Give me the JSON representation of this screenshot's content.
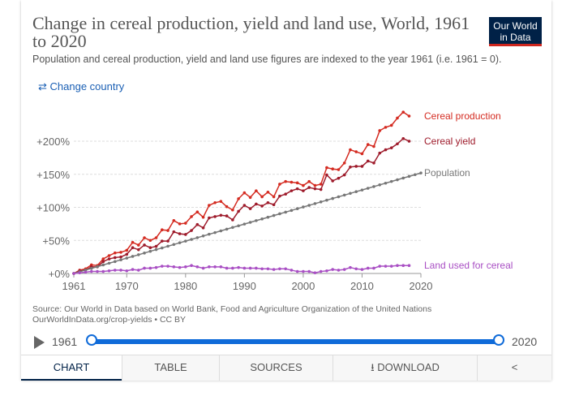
{
  "header": {
    "title": "Change in cereal production, yield and land use, World, 1961 to 2020",
    "subtitle": "Population and cereal production, yield and land use figures are indexed to the year 1961 (i.e. 1961 = 0).",
    "logo": "Our World in Data",
    "change_country": "Change country",
    "change_icon": "swap-arrows-icon"
  },
  "chart_data": {
    "type": "line",
    "title": "Change in cereal production, yield and land use, World, 1961 to 2020",
    "xlim": [
      1961,
      2020
    ],
    "ylim": [
      0,
      250
    ],
    "x_ticks": [
      "1961",
      "1970",
      "1980",
      "1990",
      "2000",
      "2010",
      "2020"
    ],
    "y_ticks": [
      "+0%",
      "+50%",
      "+100%",
      "+150%",
      "+200%"
    ],
    "grid": "horizontal dashed",
    "legend": "inline-right",
    "series": [
      {
        "name": "Cereal production",
        "color": "#d42b21",
        "start": 1961,
        "values": [
          0,
          5,
          7,
          13,
          12,
          22,
          27,
          31,
          32,
          35,
          47,
          43,
          54,
          50,
          54,
          66,
          65,
          80,
          75,
          76,
          86,
          93,
          85,
          103,
          107,
          109,
          101,
          96,
          113,
          122,
          115,
          125,
          116,
          123,
          116,
          135,
          139,
          138,
          137,
          133,
          139,
          133,
          135,
          160,
          158,
          157,
          167,
          187,
          184,
          181,
          195,
          192,
          216,
          221,
          224,
          235,
          244,
          238
        ]
      },
      {
        "name": "Cereal yield",
        "color": "#9e1b2b",
        "start": 1961,
        "values": [
          0,
          4,
          5,
          10,
          10,
          18,
          22,
          24,
          25,
          29,
          39,
          36,
          43,
          39,
          41,
          49,
          49,
          63,
          60,
          59,
          65,
          74,
          69,
          84,
          86,
          88,
          87,
          81,
          94,
          103,
          98,
          105,
          102,
          107,
          104,
          117,
          120,
          125,
          128,
          125,
          130,
          128,
          127,
          149,
          140,
          144,
          149,
          161,
          162,
          162,
          170,
          167,
          182,
          187,
          190,
          196,
          204,
          200
        ]
      },
      {
        "name": "Population",
        "color": "#777777",
        "start": 1961,
        "values": [
          0,
          2.6,
          5.2,
          7.7,
          10.3,
          12.9,
          15.5,
          18,
          20.6,
          23.2,
          25.8,
          28.3,
          30.9,
          33.5,
          36.1,
          38.6,
          41.2,
          43.8,
          46.4,
          48.9,
          51.5,
          54.1,
          56.7,
          59.3,
          61.8,
          64.4,
          67,
          69.6,
          72.1,
          74.7,
          77.3,
          79.9,
          82.4,
          85,
          87.6,
          90.2,
          92.7,
          95.3,
          97.9,
          100.5,
          103,
          105.6,
          108.2,
          110.8,
          113.4,
          115.9,
          118.5,
          121.1,
          123.7,
          126.2,
          128.8,
          131.4,
          134,
          136.5,
          139.1,
          141.7,
          144.3,
          146.8,
          149.4,
          152
        ]
      },
      {
        "name": "Land used for cereal",
        "color": "#a94fc4",
        "start": 1961,
        "values": [
          0,
          1,
          2,
          3,
          3,
          3,
          4,
          5,
          5,
          4,
          6,
          5,
          8,
          8,
          9,
          11,
          11,
          10,
          9,
          10,
          12,
          10,
          8,
          10,
          10,
          10,
          8,
          8,
          9,
          8,
          8,
          8,
          7,
          7,
          6,
          7,
          7,
          5,
          3,
          3,
          3,
          1,
          3,
          4,
          6,
          5,
          6,
          9,
          7,
          6,
          8,
          8,
          11,
          11,
          11,
          12,
          12,
          12
        ]
      }
    ]
  },
  "source": {
    "line1": "Source: Our World in Data based on World Bank, Food and Agriculture Organization of the United Nations",
    "line2": "OurWorldInData.org/crop-yields • CC BY"
  },
  "timeline": {
    "start": "1961",
    "end": "2020",
    "play_icon": "play-icon"
  },
  "tabs": [
    {
      "label": "CHART"
    },
    {
      "label": "TABLE"
    },
    {
      "label": "SOURCES"
    },
    {
      "label": "⭳ DOWNLOAD"
    },
    {
      "label": "share-icon"
    }
  ]
}
